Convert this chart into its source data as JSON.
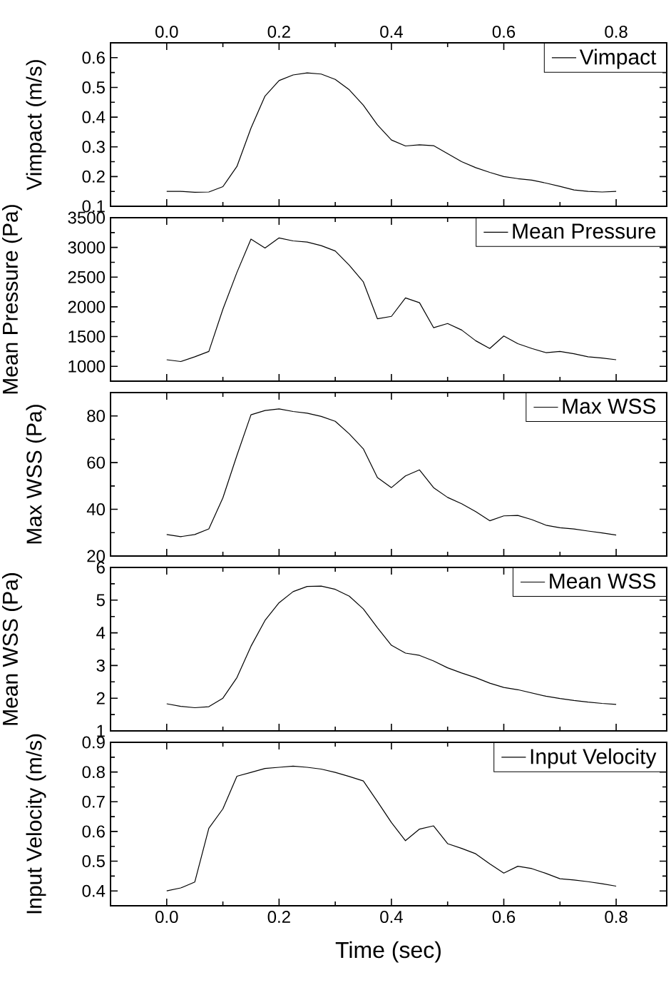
{
  "chart_data": [
    {
      "type": "line",
      "ylabel": "Vimpact (m/s)",
      "legend": "top right",
      "xlim": [
        -0.1,
        0.89
      ],
      "xticks": [
        {
          "value": 0,
          "label": "0.0"
        },
        0.2,
        0.4,
        0.6,
        0.8
      ],
      "ylim": [
        0.1,
        0.65
      ],
      "yticks": [
        0.1,
        0.2,
        0.3,
        0.4,
        0.5,
        0.6
      ],
      "x": [
        0,
        0.025,
        0.05,
        0.075,
        0.1,
        0.125,
        0.15,
        0.175,
        0.2,
        0.225,
        0.25,
        0.275,
        0.3,
        0.325,
        0.35,
        0.375,
        0.4,
        0.425,
        0.45,
        0.475,
        0.5,
        0.525,
        0.55,
        0.575,
        0.6,
        0.625,
        0.65,
        0.675,
        0.7,
        0.725,
        0.75,
        0.775,
        0.8
      ],
      "series": [
        {
          "name": "Vimpact",
          "color": "#000000",
          "values": [
            0.15,
            0.15,
            0.147,
            0.148,
            0.166,
            0.234,
            0.363,
            0.471,
            0.523,
            0.542,
            0.549,
            0.545,
            0.527,
            0.492,
            0.44,
            0.374,
            0.323,
            0.303,
            0.307,
            0.304,
            0.277,
            0.25,
            0.23,
            0.214,
            0.2,
            0.193,
            0.188,
            0.178,
            0.167,
            0.155,
            0.15,
            0.148,
            0.15
          ]
        }
      ]
    },
    {
      "type": "line",
      "ylabel": "Mean Pressure (Pa)",
      "legend": "top right",
      "tick_labels": "y",
      "xlim": [
        -0.1,
        0.89
      ],
      "xticks": [
        0,
        0.2,
        0.4,
        0.6,
        0.8
      ],
      "ylim": [
        750,
        3500
      ],
      "yticks": [
        1000,
        1500,
        2000,
        2500,
        3000,
        3500
      ],
      "x": [
        0,
        0.025,
        0.05,
        0.075,
        0.1,
        0.125,
        0.15,
        0.175,
        0.2,
        0.225,
        0.25,
        0.275,
        0.3,
        0.325,
        0.35,
        0.375,
        0.4,
        0.425,
        0.45,
        0.475,
        0.5,
        0.525,
        0.55,
        0.575,
        0.6,
        0.625,
        0.65,
        0.675,
        0.7,
        0.725,
        0.75,
        0.775,
        0.8
      ],
      "series": [
        {
          "name": "Mean Pressure",
          "color": "#000000",
          "values": [
            1110,
            1080,
            1160,
            1250,
            1960,
            2580,
            3140,
            2990,
            3160,
            3110,
            3090,
            3030,
            2940,
            2700,
            2420,
            1800,
            1840,
            2150,
            2070,
            1650,
            1720,
            1610,
            1430,
            1300,
            1510,
            1380,
            1300,
            1230,
            1250,
            1210,
            1160,
            1140,
            1110
          ]
        }
      ]
    },
    {
      "type": "line",
      "ylabel": "Max WSS (Pa)",
      "legend": "top right",
      "tick_labels": "y",
      "xlim": [
        -0.1,
        0.89
      ],
      "xticks": [
        0,
        0.2,
        0.4,
        0.6,
        0.8
      ],
      "ylim": [
        20,
        90
      ],
      "yticks": [
        20,
        40,
        60,
        80
      ],
      "x": [
        0,
        0.025,
        0.05,
        0.075,
        0.1,
        0.125,
        0.15,
        0.175,
        0.2,
        0.225,
        0.25,
        0.275,
        0.3,
        0.325,
        0.35,
        0.375,
        0.4,
        0.425,
        0.45,
        0.475,
        0.5,
        0.525,
        0.55,
        0.575,
        0.6,
        0.625,
        0.65,
        0.675,
        0.7,
        0.725,
        0.75,
        0.775,
        0.8
      ],
      "series": [
        {
          "name": "Max WSS",
          "color": "#000000",
          "values": [
            29.2,
            28.3,
            29.2,
            31.6,
            44.9,
            63.1,
            80.5,
            82.3,
            83.0,
            81.9,
            81.2,
            79.8,
            77.7,
            72.3,
            65.9,
            53.6,
            49.3,
            54.3,
            56.9,
            49.3,
            45.1,
            42.4,
            39.0,
            35.1,
            37.2,
            37.4,
            35.6,
            33.2,
            32.1,
            31.6,
            30.7,
            29.9,
            29.0
          ]
        }
      ]
    },
    {
      "type": "line",
      "ylabel": "Mean WSS (Pa)",
      "legend": "top right",
      "tick_labels": "y",
      "xlim": [
        -0.1,
        0.89
      ],
      "xticks": [
        0,
        0.2,
        0.4,
        0.6,
        0.8
      ],
      "ylim": [
        1,
        6
      ],
      "yticks": [
        1,
        2,
        3,
        4,
        5,
        6
      ],
      "x": [
        0,
        0.025,
        0.05,
        0.075,
        0.1,
        0.125,
        0.15,
        0.175,
        0.2,
        0.225,
        0.25,
        0.275,
        0.3,
        0.325,
        0.35,
        0.375,
        0.4,
        0.425,
        0.45,
        0.475,
        0.5,
        0.525,
        0.55,
        0.575,
        0.6,
        0.625,
        0.65,
        0.675,
        0.7,
        0.725,
        0.75,
        0.775,
        0.8
      ],
      "series": [
        {
          "name": "Mean WSS",
          "color": "#000000",
          "values": [
            1.83,
            1.75,
            1.71,
            1.74,
            2.0,
            2.63,
            3.59,
            4.38,
            4.92,
            5.26,
            5.42,
            5.43,
            5.33,
            5.12,
            4.73,
            4.16,
            3.62,
            3.38,
            3.31,
            3.14,
            2.93,
            2.77,
            2.63,
            2.46,
            2.33,
            2.26,
            2.16,
            2.06,
            1.99,
            1.93,
            1.88,
            1.84,
            1.81
          ]
        }
      ]
    },
    {
      "type": "line",
      "xlabel": "Time (sec)",
      "ylabel": "Input Velocity (m/s)",
      "legend": "top right",
      "xlim": [
        -0.1,
        0.89
      ],
      "xticks": [
        {
          "value": 0,
          "label": "0.0"
        },
        0.2,
        0.4,
        0.6,
        0.8
      ],
      "ylim": [
        0.35,
        0.9
      ],
      "yticks": [
        0.4,
        0.5,
        0.6,
        0.7,
        0.8,
        0.9
      ],
      "x": [
        0,
        0.025,
        0.05,
        0.075,
        0.1,
        0.125,
        0.15,
        0.175,
        0.2,
        0.225,
        0.25,
        0.275,
        0.3,
        0.325,
        0.35,
        0.375,
        0.4,
        0.425,
        0.45,
        0.475,
        0.5,
        0.525,
        0.55,
        0.575,
        0.6,
        0.625,
        0.65,
        0.675,
        0.7,
        0.725,
        0.75,
        0.775,
        0.8
      ],
      "series": [
        {
          "name": "Input Velocity",
          "color": "#000000",
          "values": [
            0.4,
            0.41,
            0.43,
            0.611,
            0.676,
            0.786,
            0.799,
            0.812,
            0.816,
            0.82,
            0.816,
            0.81,
            0.799,
            0.785,
            0.77,
            0.701,
            0.63,
            0.569,
            0.608,
            0.619,
            0.559,
            0.543,
            0.525,
            0.491,
            0.46,
            0.483,
            0.475,
            0.459,
            0.441,
            0.437,
            0.431,
            0.424,
            0.416
          ]
        }
      ]
    }
  ]
}
